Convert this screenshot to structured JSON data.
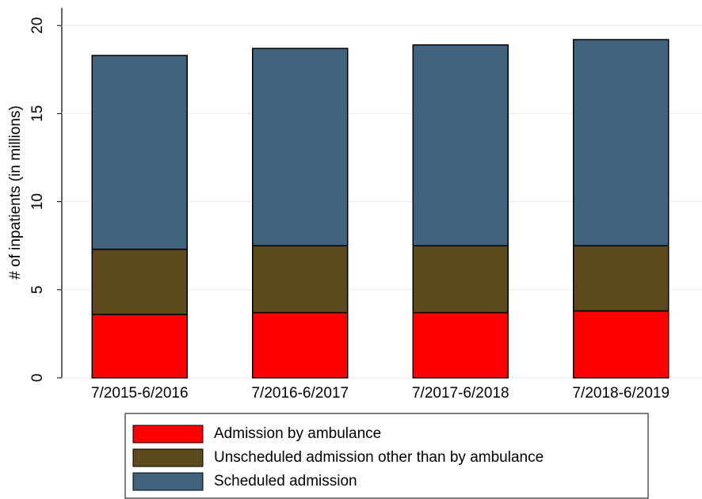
{
  "chart_data": {
    "type": "stacked_bar",
    "y_label": "# of inpatients (in millions)",
    "categories": [
      "7/2015-6/2016",
      "7/2016-6/2017",
      "7/2017-6/2018",
      "7/2018-6/2019"
    ],
    "series": [
      {
        "name": "Admission by ambulance",
        "color": "#ff0000",
        "values": [
          3.6,
          3.7,
          3.7,
          3.8
        ]
      },
      {
        "name": "Unscheduled admission other than by ambulance",
        "color": "#5c4a1c",
        "values": [
          3.7,
          3.8,
          3.8,
          3.7
        ]
      },
      {
        "name": "Scheduled admission",
        "color": "#42637e",
        "values": [
          11.0,
          11.2,
          11.4,
          11.7
        ]
      }
    ],
    "ylim": [
      0,
      21
    ],
    "yticks": [
      0,
      5,
      10,
      15,
      20
    ],
    "grid": true,
    "legend": "bottom"
  }
}
